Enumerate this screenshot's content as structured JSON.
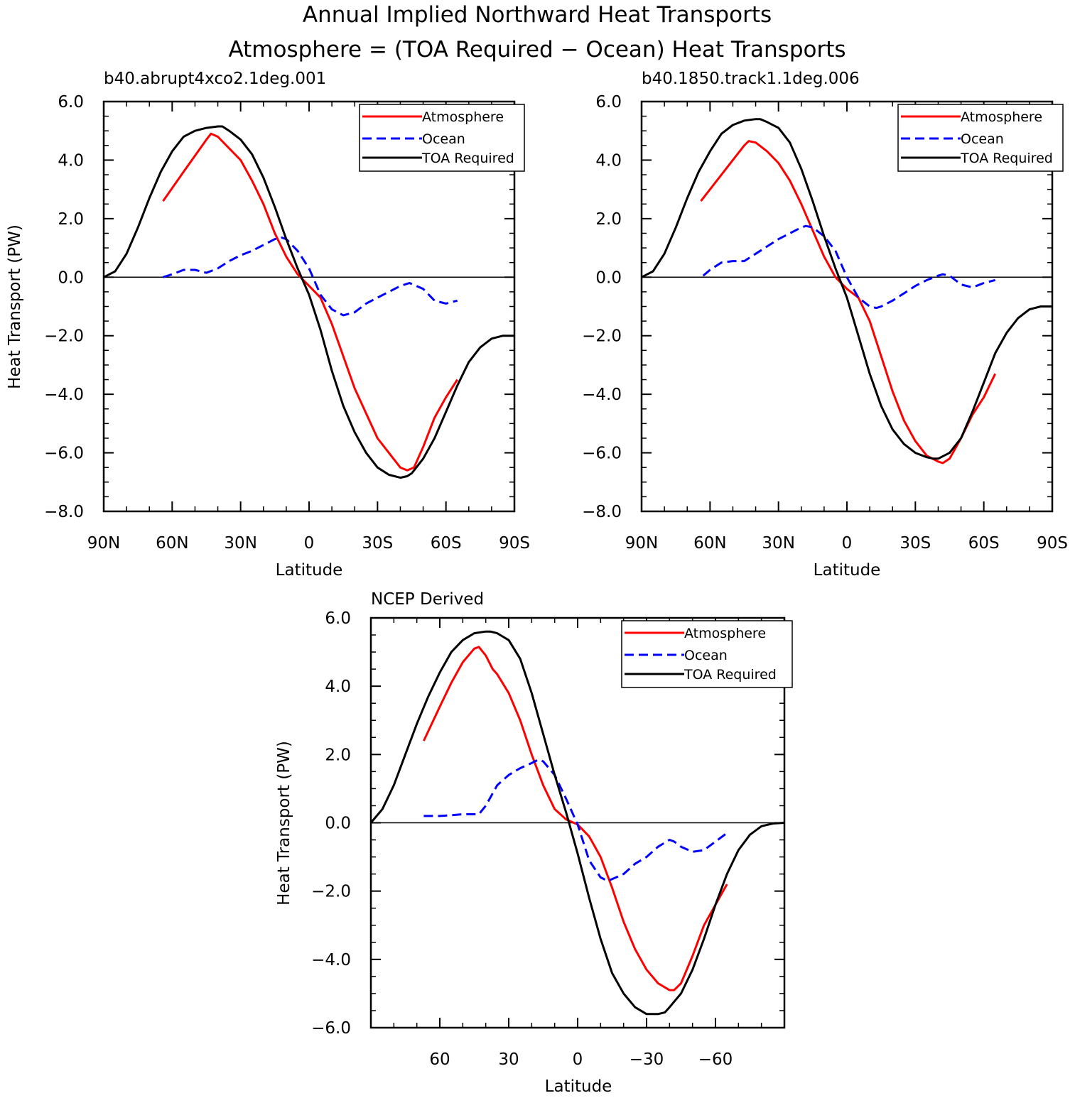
{
  "figure": {
    "title_line1": "Annual Implied Northward Heat Transports",
    "title_line2": "Atmosphere = (TOA Required − Ocean) Heat Transports"
  },
  "series_style": {
    "Atmosphere": {
      "color": "#ff0000",
      "dash": "none"
    },
    "Ocean": {
      "color": "#0000ff",
      "dash": "dashed"
    },
    "TOA Required": {
      "color": "#000000",
      "dash": "none"
    }
  },
  "chart_data": [
    {
      "type": "line",
      "title": "b40.abrupt4xco2.1deg.001",
      "xlabel": "Latitude",
      "ylabel": "Heat Transport (PW)",
      "xlim": [
        90,
        -90
      ],
      "ylim": [
        -8,
        6
      ],
      "x_ticks": [
        90,
        60,
        30,
        0,
        -30,
        -60,
        -90
      ],
      "x_tick_labels": [
        "90N",
        "60N",
        "30N",
        "0",
        "30S",
        "60S",
        "90S"
      ],
      "y_ticks": [
        6,
        4,
        2,
        0,
        -2,
        -4,
        -6,
        -8
      ],
      "y_tick_labels": [
        "6.0",
        "4.0",
        "2.0",
        "0.0",
        "−2.0",
        "−4.0",
        "−6.0",
        "−8.0"
      ],
      "legend": [
        "Atmosphere",
        "Ocean",
        "TOA Required"
      ],
      "legend_position": "top-right",
      "series": [
        {
          "name": "Atmosphere",
          "x": [
            64,
            55,
            45,
            43,
            40,
            35,
            30,
            25,
            20,
            15,
            10,
            5,
            0,
            -5,
            -10,
            -20,
            -30,
            -40,
            -43,
            -46,
            -50,
            -55,
            -60,
            -65
          ],
          "y": [
            2.6,
            3.6,
            4.7,
            4.9,
            4.8,
            4.4,
            4.0,
            3.3,
            2.5,
            1.5,
            0.7,
            0.1,
            -0.3,
            -0.7,
            -1.6,
            -3.8,
            -5.5,
            -6.5,
            -6.6,
            -6.5,
            -5.8,
            -4.8,
            -4.1,
            -3.5
          ]
        },
        {
          "name": "Ocean",
          "x": [
            64,
            60,
            55,
            50,
            45,
            40,
            35,
            30,
            25,
            20,
            15,
            12,
            10,
            5,
            0,
            -5,
            -10,
            -15,
            -20,
            -25,
            -30,
            -35,
            -40,
            -44,
            -50,
            -55,
            -60,
            -65
          ],
          "y": [
            0.0,
            0.1,
            0.25,
            0.25,
            0.15,
            0.3,
            0.55,
            0.75,
            0.9,
            1.1,
            1.3,
            1.35,
            1.3,
            0.9,
            0.3,
            -0.6,
            -1.1,
            -1.3,
            -1.2,
            -0.9,
            -0.7,
            -0.5,
            -0.3,
            -0.2,
            -0.4,
            -0.8,
            -0.9,
            -0.8
          ]
        },
        {
          "name": "TOA Required",
          "x": [
            90,
            85,
            80,
            75,
            70,
            65,
            60,
            55,
            50,
            45,
            40,
            38,
            35,
            30,
            25,
            20,
            15,
            10,
            5,
            0,
            -5,
            -10,
            -15,
            -20,
            -25,
            -30,
            -35,
            -40,
            -43,
            -45,
            -50,
            -55,
            -60,
            -65,
            -70,
            -75,
            -80,
            -85,
            -90
          ],
          "y": [
            0.0,
            0.2,
            0.8,
            1.7,
            2.7,
            3.6,
            4.3,
            4.8,
            5.0,
            5.1,
            5.15,
            5.15,
            5.0,
            4.7,
            4.2,
            3.4,
            2.4,
            1.3,
            0.3,
            -0.6,
            -1.8,
            -3.2,
            -4.4,
            -5.3,
            -6.0,
            -6.5,
            -6.75,
            -6.85,
            -6.8,
            -6.7,
            -6.2,
            -5.5,
            -4.6,
            -3.7,
            -2.9,
            -2.4,
            -2.1,
            -2.0,
            -2.0
          ]
        }
      ]
    },
    {
      "type": "line",
      "title": "b40.1850.track1.1deg.006",
      "xlabel": "Latitude",
      "ylabel": "",
      "xlim": [
        90,
        -90
      ],
      "ylim": [
        -8,
        6
      ],
      "x_ticks": [
        90,
        60,
        30,
        0,
        -30,
        -60,
        -90
      ],
      "x_tick_labels": [
        "90N",
        "60N",
        "30N",
        "0",
        "30S",
        "60S",
        "90S"
      ],
      "y_ticks": [
        6,
        4,
        2,
        0,
        -2,
        -4,
        -6,
        -8
      ],
      "y_tick_labels": [
        "6.0",
        "4.0",
        "2.0",
        "0.0",
        "−2.0",
        "−4.0",
        "−6.0",
        "−8.0"
      ],
      "legend": [
        "Atmosphere",
        "Ocean",
        "TOA Required"
      ],
      "legend_position": "top-right",
      "series": [
        {
          "name": "Atmosphere",
          "x": [
            64,
            55,
            50,
            45,
            43,
            40,
            35,
            30,
            25,
            20,
            15,
            10,
            5,
            0,
            -5,
            -10,
            -15,
            -20,
            -25,
            -30,
            -35,
            -40,
            -42,
            -45,
            -50,
            -55,
            -60,
            -65
          ],
          "y": [
            2.6,
            3.5,
            4.0,
            4.5,
            4.65,
            4.6,
            4.3,
            3.9,
            3.3,
            2.5,
            1.6,
            0.7,
            0.0,
            -0.4,
            -0.7,
            -1.5,
            -2.7,
            -3.9,
            -4.9,
            -5.6,
            -6.1,
            -6.3,
            -6.35,
            -6.2,
            -5.5,
            -4.7,
            -4.1,
            -3.3
          ]
        },
        {
          "name": "Ocean",
          "x": [
            63,
            60,
            55,
            50,
            45,
            40,
            35,
            30,
            25,
            20,
            18,
            15,
            10,
            5,
            0,
            -5,
            -10,
            -13,
            -15,
            -20,
            -25,
            -30,
            -35,
            -40,
            -42,
            -45,
            -50,
            -55,
            -60,
            -65
          ],
          "y": [
            0.05,
            0.25,
            0.5,
            0.55,
            0.55,
            0.8,
            1.05,
            1.3,
            1.5,
            1.7,
            1.75,
            1.7,
            1.4,
            0.9,
            0.0,
            -0.7,
            -1.0,
            -1.05,
            -1.0,
            -0.8,
            -0.55,
            -0.3,
            -0.1,
            0.05,
            0.1,
            0.05,
            -0.25,
            -0.35,
            -0.2,
            -0.1
          ]
        },
        {
          "name": "TOA Required",
          "x": [
            90,
            85,
            80,
            75,
            70,
            65,
            60,
            55,
            50,
            45,
            40,
            38,
            35,
            30,
            25,
            20,
            15,
            10,
            5,
            0,
            -5,
            -10,
            -15,
            -20,
            -25,
            -30,
            -35,
            -38,
            -40,
            -45,
            -50,
            -55,
            -60,
            -65,
            -70,
            -75,
            -80,
            -85,
            -90
          ],
          "y": [
            0.0,
            0.2,
            0.8,
            1.7,
            2.7,
            3.6,
            4.3,
            4.9,
            5.2,
            5.35,
            5.4,
            5.4,
            5.3,
            5.1,
            4.6,
            3.7,
            2.6,
            1.4,
            0.3,
            -0.7,
            -2.0,
            -3.3,
            -4.4,
            -5.2,
            -5.7,
            -6.0,
            -6.15,
            -6.2,
            -6.2,
            -6.0,
            -5.5,
            -4.6,
            -3.6,
            -2.6,
            -1.9,
            -1.4,
            -1.1,
            -1.0,
            -1.0
          ]
        }
      ]
    },
    {
      "type": "line",
      "title": "NCEP Derived",
      "xlabel": "Latitude",
      "ylabel": "Heat Transport (PW)",
      "xlim": [
        90,
        -90
      ],
      "ylim": [
        -6,
        6
      ],
      "x_ticks": [
        60,
        30,
        0,
        -30,
        -60
      ],
      "x_tick_labels": [
        "60",
        "30",
        "0",
        "−30",
        "−60"
      ],
      "y_ticks": [
        6,
        4,
        2,
        0,
        -2,
        -4,
        -6
      ],
      "y_tick_labels": [
        "6.0",
        "4.0",
        "2.0",
        "0.0",
        "−2.0",
        "−4.0",
        "−6.0"
      ],
      "legend": [
        "Atmosphere",
        "Ocean",
        "TOA Required"
      ],
      "legend_position": "top-right",
      "series": [
        {
          "name": "Atmosphere",
          "x": [
            67,
            60,
            55,
            50,
            45,
            43,
            40,
            37,
            35,
            30,
            25,
            20,
            15,
            10,
            5,
            0,
            -5,
            -10,
            -15,
            -20,
            -25,
            -30,
            -35,
            -40,
            -42,
            -45,
            -50,
            -55,
            -60,
            -65
          ],
          "y": [
            2.4,
            3.4,
            4.1,
            4.7,
            5.1,
            5.15,
            4.9,
            4.5,
            4.35,
            3.8,
            3.0,
            2.0,
            1.1,
            0.4,
            0.1,
            -0.05,
            -0.4,
            -1.0,
            -1.9,
            -2.9,
            -3.7,
            -4.3,
            -4.7,
            -4.9,
            -4.9,
            -4.7,
            -3.9,
            -3.0,
            -2.4,
            -1.8
          ]
        },
        {
          "name": "Ocean",
          "x": [
            67,
            60,
            55,
            50,
            45,
            43,
            40,
            35,
            30,
            25,
            20,
            17,
            15,
            10,
            5,
            0,
            -5,
            -10,
            -13,
            -15,
            -20,
            -25,
            -30,
            -35,
            -40,
            -42,
            -45,
            -50,
            -55,
            -60,
            -65
          ],
          "y": [
            0.2,
            0.2,
            0.22,
            0.25,
            0.25,
            0.25,
            0.5,
            1.1,
            1.4,
            1.6,
            1.75,
            1.85,
            1.8,
            1.4,
            0.7,
            -0.05,
            -1.1,
            -1.6,
            -1.7,
            -1.65,
            -1.5,
            -1.2,
            -1.0,
            -0.7,
            -0.5,
            -0.55,
            -0.7,
            -0.85,
            -0.8,
            -0.55,
            -0.3
          ]
        },
        {
          "name": "TOA Required",
          "x": [
            90,
            85,
            80,
            75,
            70,
            65,
            60,
            55,
            50,
            45,
            40,
            38,
            35,
            30,
            25,
            20,
            15,
            10,
            5,
            0,
            -5,
            -10,
            -15,
            -20,
            -25,
            -30,
            -35,
            -38,
            -40,
            -45,
            -50,
            -55,
            -60,
            -65,
            -70,
            -75,
            -80,
            -85,
            -90
          ],
          "y": [
            0.0,
            0.4,
            1.1,
            2.0,
            2.9,
            3.7,
            4.4,
            5.0,
            5.35,
            5.55,
            5.6,
            5.6,
            5.55,
            5.35,
            4.8,
            3.8,
            2.6,
            1.4,
            0.3,
            -0.9,
            -2.2,
            -3.4,
            -4.4,
            -5.0,
            -5.4,
            -5.6,
            -5.6,
            -5.55,
            -5.4,
            -5.0,
            -4.3,
            -3.4,
            -2.4,
            -1.5,
            -0.8,
            -0.35,
            -0.1,
            -0.02,
            0.0
          ]
        }
      ]
    }
  ]
}
